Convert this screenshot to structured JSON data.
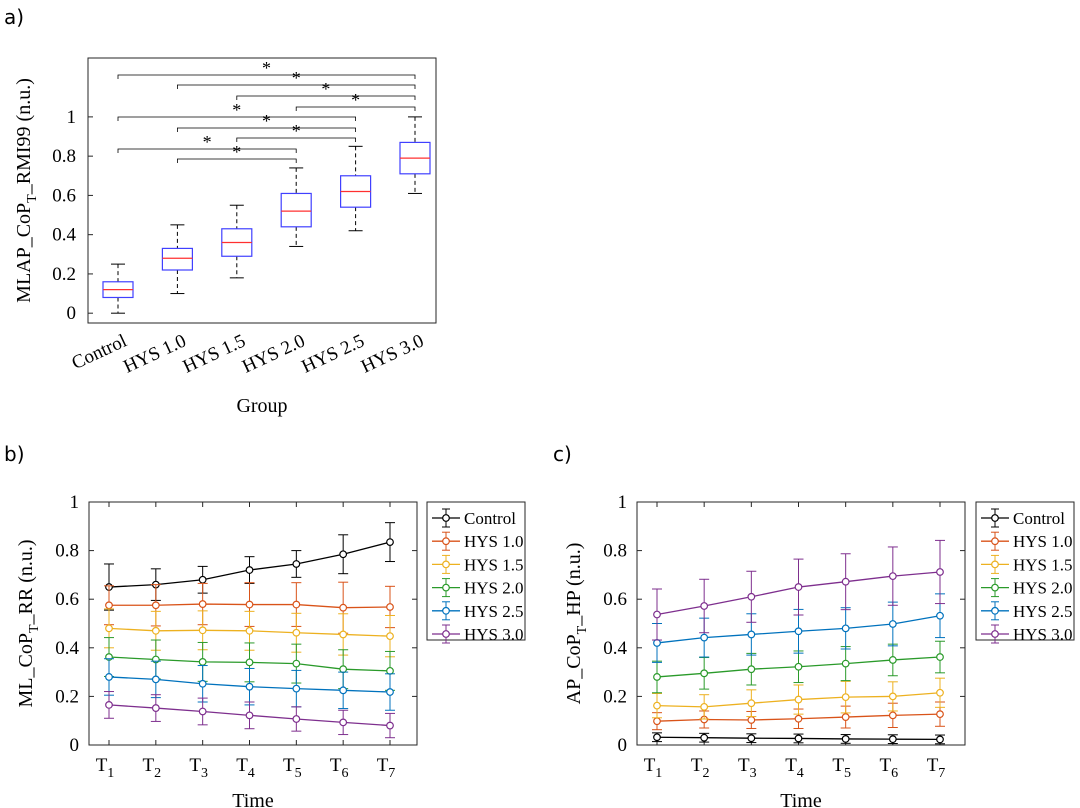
{
  "panels": {
    "a": "a)",
    "b": "b)",
    "c": "c)"
  },
  "chart_data": [
    {
      "id": "a",
      "type": "box",
      "xlabel": "Group",
      "ylabel": "MLAP_CoP_T_RMI99 (n.u.)",
      "ylabel_main": "MLAP_CoP",
      "ylabel_sub": "T",
      "ylabel_tail": "_RMI99 (n.u.)",
      "ylim": [
        -0.05,
        1.3
      ],
      "yticks": [
        0,
        0.2,
        0.4,
        0.6,
        0.8,
        1
      ],
      "categories": [
        "Control",
        "HYS 1.0",
        "HYS 1.5",
        "HYS 2.0",
        "HYS 2.5",
        "HYS 3.0"
      ],
      "boxes": [
        {
          "min": 0.0,
          "q1": 0.08,
          "median": 0.12,
          "q3": 0.16,
          "max": 0.25
        },
        {
          "min": 0.1,
          "q1": 0.22,
          "median": 0.28,
          "q3": 0.33,
          "max": 0.45
        },
        {
          "min": 0.18,
          "q1": 0.29,
          "median": 0.36,
          "q3": 0.43,
          "max": 0.55
        },
        {
          "min": 0.34,
          "q1": 0.44,
          "median": 0.52,
          "q3": 0.61,
          "max": 0.74
        },
        {
          "min": 0.42,
          "q1": 0.54,
          "median": 0.62,
          "q3": 0.7,
          "max": 0.85
        },
        {
          "min": 0.61,
          "q1": 0.71,
          "median": 0.79,
          "q3": 0.87,
          "max": 1.0
        }
      ],
      "significance": [
        {
          "from": 0,
          "to": 5,
          "label": "*"
        },
        {
          "from": 1,
          "to": 5,
          "label": "*"
        },
        {
          "from": 2,
          "to": 5,
          "label": "*"
        },
        {
          "from": 3,
          "to": 5,
          "label": "*"
        },
        {
          "from": 0,
          "to": 4,
          "label": "*"
        },
        {
          "from": 1,
          "to": 4,
          "label": "*"
        },
        {
          "from": 2,
          "to": 4,
          "label": "*"
        },
        {
          "from": 0,
          "to": 3,
          "label": "*"
        },
        {
          "from": 1,
          "to": 3,
          "label": "*"
        }
      ],
      "colors": {
        "box": "#4040ff",
        "median": "#ff3030",
        "whisker": "#000000"
      }
    },
    {
      "id": "b",
      "type": "line",
      "xlabel": "Time",
      "ylabel": "ML_CoP_T_RR (n.u.)",
      "ylabel_main": "ML_CoP",
      "ylabel_sub": "T",
      "ylabel_tail": "_RR (n.u.)",
      "ylim": [
        0,
        1
      ],
      "yticks": [
        0,
        0.2,
        0.4,
        0.6,
        0.8,
        1
      ],
      "x_main": "T",
      "x_subs": [
        "1",
        "2",
        "3",
        "4",
        "5",
        "6",
        "7"
      ],
      "series": [
        {
          "name": "Control",
          "color": "#000000",
          "values": [
            0.65,
            0.66,
            0.68,
            0.72,
            0.745,
            0.785,
            0.835
          ],
          "err": [
            0.095,
            0.065,
            0.055,
            0.055,
            0.055,
            0.08,
            0.08
          ]
        },
        {
          "name": "HYS 1.0",
          "color": "#d95319",
          "values": [
            0.575,
            0.575,
            0.58,
            0.578,
            0.578,
            0.565,
            0.568
          ],
          "err": [
            0.08,
            0.085,
            0.085,
            0.09,
            0.09,
            0.105,
            0.085
          ]
        },
        {
          "name": "HYS 1.5",
          "color": "#edb120",
          "values": [
            0.48,
            0.47,
            0.472,
            0.47,
            0.462,
            0.455,
            0.448
          ],
          "err": [
            0.08,
            0.08,
            0.08,
            0.08,
            0.08,
            0.085,
            0.085
          ]
        },
        {
          "name": "HYS 2.0",
          "color": "#2a9a2a",
          "values": [
            0.362,
            0.352,
            0.342,
            0.34,
            0.335,
            0.312,
            0.305
          ],
          "err": [
            0.08,
            0.08,
            0.08,
            0.08,
            0.08,
            0.08,
            0.08
          ]
        },
        {
          "name": "HYS 2.5",
          "color": "#0072bd",
          "values": [
            0.28,
            0.27,
            0.252,
            0.24,
            0.232,
            0.225,
            0.218
          ],
          "err": [
            0.075,
            0.075,
            0.075,
            0.075,
            0.075,
            0.075,
            0.075
          ]
        },
        {
          "name": "HYS 3.0",
          "color": "#7e2f8e",
          "values": [
            0.165,
            0.152,
            0.138,
            0.122,
            0.107,
            0.093,
            0.08
          ],
          "err": [
            0.055,
            0.055,
            0.055,
            0.055,
            0.05,
            0.05,
            0.05
          ]
        }
      ]
    },
    {
      "id": "c",
      "type": "line",
      "xlabel": "Time",
      "ylabel": "AP_CoP_T_HP (n.u.)",
      "ylabel_main": "AP_CoP",
      "ylabel_sub": "T",
      "ylabel_tail": "_HP (n.u.)",
      "ylim": [
        0,
        1
      ],
      "yticks": [
        0,
        0.2,
        0.4,
        0.6,
        0.8,
        1
      ],
      "x_main": "T",
      "x_subs": [
        "1",
        "2",
        "3",
        "4",
        "5",
        "6",
        "7"
      ],
      "series": [
        {
          "name": "Control",
          "color": "#000000",
          "values": [
            0.032,
            0.03,
            0.028,
            0.027,
            0.025,
            0.024,
            0.023
          ],
          "err": [
            0.018,
            0.018,
            0.018,
            0.018,
            0.018,
            0.018,
            0.018
          ]
        },
        {
          "name": "HYS 1.0",
          "color": "#d95319",
          "values": [
            0.098,
            0.105,
            0.103,
            0.108,
            0.115,
            0.122,
            0.127
          ],
          "err": [
            0.035,
            0.035,
            0.035,
            0.04,
            0.045,
            0.05,
            0.05
          ]
        },
        {
          "name": "HYS 1.5",
          "color": "#edb120",
          "values": [
            0.162,
            0.157,
            0.172,
            0.187,
            0.197,
            0.2,
            0.215
          ],
          "err": [
            0.05,
            0.05,
            0.055,
            0.06,
            0.065,
            0.06,
            0.06
          ]
        },
        {
          "name": "HYS 2.0",
          "color": "#2a9a2a",
          "values": [
            0.28,
            0.295,
            0.312,
            0.322,
            0.335,
            0.35,
            0.362
          ],
          "err": [
            0.065,
            0.065,
            0.065,
            0.065,
            0.07,
            0.065,
            0.065
          ]
        },
        {
          "name": "HYS 2.5",
          "color": "#0072bd",
          "values": [
            0.42,
            0.442,
            0.455,
            0.468,
            0.48,
            0.498,
            0.532
          ],
          "err": [
            0.08,
            0.08,
            0.085,
            0.09,
            0.085,
            0.09,
            0.09
          ]
        },
        {
          "name": "HYS 3.0",
          "color": "#7e2f8e",
          "values": [
            0.537,
            0.572,
            0.61,
            0.65,
            0.672,
            0.695,
            0.712
          ],
          "err": [
            0.105,
            0.11,
            0.105,
            0.115,
            0.115,
            0.12,
            0.13
          ]
        }
      ]
    }
  ]
}
